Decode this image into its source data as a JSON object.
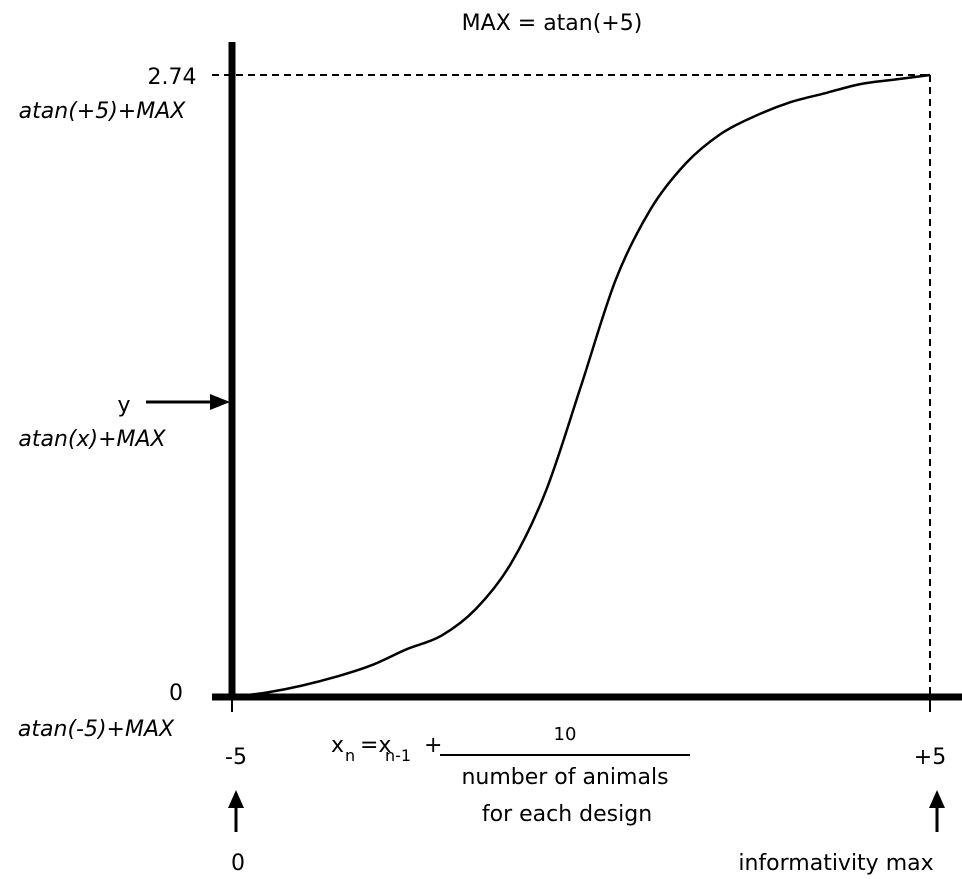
{
  "chart_data": {
    "type": "line",
    "title": "MAX = atan(+5)",
    "x_range": [
      -5,
      5
    ],
    "y_range": [
      0,
      2.74
    ],
    "series": [
      {
        "x": [
          -5,
          -4.5,
          -4,
          -3.5,
          -3,
          -2.5,
          -2,
          -1.5,
          -1,
          -0.5,
          0,
          0.5,
          1,
          1.5,
          2,
          2.5,
          3,
          3.5,
          4,
          4.5,
          5
        ],
        "y": [
          0,
          0.02,
          0.05,
          0.09,
          0.14,
          0.21,
          0.27,
          0.39,
          0.59,
          0.91,
          1.37,
          1.84,
          2.15,
          2.35,
          2.48,
          2.56,
          2.62,
          2.66,
          2.7,
          2.72,
          2.74
        ]
      }
    ],
    "y_ticks": {
      "top": {
        "value_label": "2.74",
        "formula": "atan(+5)+MAX"
      },
      "middle": {
        "value_label": "y",
        "formula": "atan(x)+MAX"
      },
      "bottom": {
        "value_label": "0",
        "formula": "atan(-5)+MAX"
      }
    },
    "x_ticks": {
      "left": {
        "label": "-5",
        "annotation": "0"
      },
      "right": {
        "label": "+5",
        "annotation": "informativity max"
      }
    },
    "x_formula": {
      "lhs_x": "x",
      "lhs_sub": "n",
      "eq_x": "=x",
      "rhs_sub": "n-1",
      "plus": "+",
      "numerator": "10",
      "denominator_line1": "number of animals",
      "denominator_line2": "for each design"
    },
    "grid": false,
    "legend": "none"
  }
}
